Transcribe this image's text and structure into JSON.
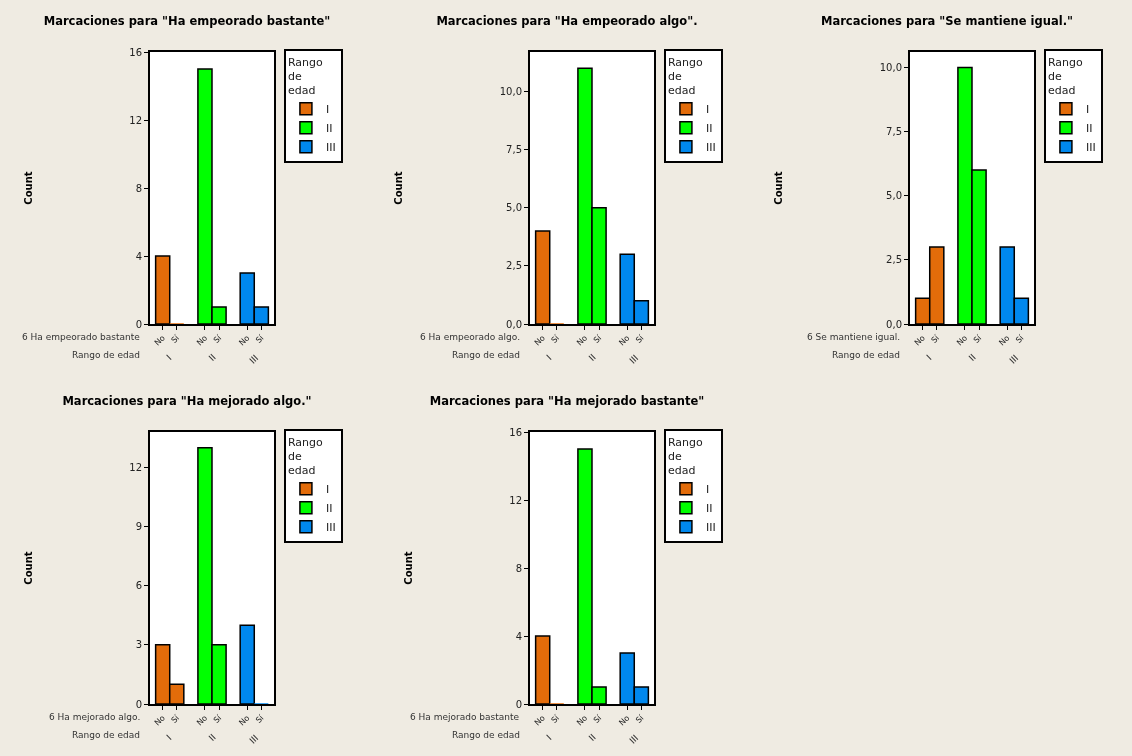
{
  "chart_data": [
    {
      "type": "bar",
      "title": "Marcaciones para \"Ha empeorado bastante\"",
      "ylabel": "Count",
      "legend_title": "Rango de edad",
      "legend": "top right",
      "grid": false,
      "categories": [
        "No",
        "Sí",
        "No",
        "Sí",
        "No",
        "Sí"
      ],
      "series": [
        {
          "name": "I",
          "color": "#e36c0a",
          "values": [
            4,
            0,
            null,
            null,
            null,
            null
          ]
        },
        {
          "name": "II",
          "color": "#00ff00",
          "values": [
            null,
            null,
            15,
            1,
            null,
            null
          ]
        },
        {
          "name": "III",
          "color": "#0088ee",
          "values": [
            null,
            null,
            null,
            null,
            3,
            1
          ]
        }
      ],
      "ylim": [
        0,
        16
      ],
      "yticks": [
        0,
        4,
        8,
        12,
        16
      ],
      "annotations": [
        "6 Ha empeorado bastante",
        "Rango de edad",
        "I",
        "II",
        "III"
      ]
    },
    {
      "type": "bar",
      "title": "Marcaciones para \"Ha empeorado algo\".",
      "ylabel": "Count",
      "legend_title": "Rango de edad",
      "legend": "top right",
      "grid": false,
      "categories": [
        "No",
        "Sí",
        "No",
        "Sí",
        "No",
        "Sí"
      ],
      "series": [
        {
          "name": "I",
          "color": "#e36c0a",
          "values": [
            4,
            0,
            null,
            null,
            null,
            null
          ]
        },
        {
          "name": "II",
          "color": "#00ff00",
          "values": [
            null,
            null,
            11,
            5,
            null,
            null
          ]
        },
        {
          "name": "III",
          "color": "#0088ee",
          "values": [
            null,
            null,
            null,
            null,
            3,
            1
          ]
        }
      ],
      "ylim": [
        0,
        11.7
      ],
      "yticks": [
        {
          "value": 0,
          "label": "0,0"
        },
        {
          "value": 2.5,
          "label": "2,5"
        },
        {
          "value": 5,
          "label": "5,0"
        },
        {
          "value": 7.5,
          "label": "7,5"
        },
        {
          "value": 10,
          "label": "10,0"
        }
      ],
      "annotations": [
        "6 Ha empeorado algo.",
        "Rango de edad",
        "I",
        "II",
        "III"
      ]
    },
    {
      "type": "bar",
      "title": "Marcaciones para \"Se mantiene igual.\"",
      "ylabel": "Count",
      "legend_title": "Rango de edad",
      "legend": "top right",
      "grid": false,
      "categories": [
        "No",
        "Sí",
        "No",
        "Sí",
        "No",
        "Sí"
      ],
      "series": [
        {
          "name": "I",
          "color": "#e36c0a",
          "values": [
            1,
            3,
            null,
            null,
            null,
            null
          ]
        },
        {
          "name": "II",
          "color": "#00ff00",
          "values": [
            null,
            null,
            10,
            6,
            null,
            null
          ]
        },
        {
          "name": "III",
          "color": "#0088ee",
          "values": [
            null,
            null,
            null,
            null,
            3,
            1
          ]
        }
      ],
      "ylim": [
        0,
        10.6
      ],
      "yticks": [
        {
          "value": 0,
          "label": "0,0"
        },
        {
          "value": 2.5,
          "label": "2,5"
        },
        {
          "value": 5,
          "label": "5,0"
        },
        {
          "value": 7.5,
          "label": "7,5"
        },
        {
          "value": 10,
          "label": "10,0"
        }
      ],
      "annotations": [
        "6 Se mantiene igual.",
        "Rango de edad",
        "I",
        "II",
        "III"
      ]
    },
    {
      "type": "bar",
      "title": "Marcaciones para \"Ha mejorado algo.\"",
      "ylabel": "Count",
      "legend_title": "Rango de edad",
      "legend": "top right",
      "grid": false,
      "categories": [
        "No",
        "Sí",
        "No",
        "Sí",
        "No",
        "Sí"
      ],
      "series": [
        {
          "name": "I",
          "color": "#e36c0a",
          "values": [
            3,
            1,
            null,
            null,
            null,
            null
          ]
        },
        {
          "name": "II",
          "color": "#00ff00",
          "values": [
            null,
            null,
            13,
            3,
            null,
            null
          ]
        },
        {
          "name": "III",
          "color": "#0088ee",
          "values": [
            null,
            null,
            null,
            null,
            4,
            0
          ]
        }
      ],
      "ylim": [
        0,
        13.8
      ],
      "yticks": [
        0,
        3,
        6,
        9,
        12
      ],
      "annotations": [
        "6 Ha mejorado algo.",
        "Rango de edad",
        "I",
        "II",
        "III"
      ]
    },
    {
      "type": "bar",
      "title": "Marcaciones para \"Ha mejorado bastante\"",
      "ylabel": "Count",
      "legend_title": "Rango de edad",
      "legend": "top right",
      "grid": false,
      "categories": [
        "No",
        "Sí",
        "No",
        "Sí",
        "No",
        "Sí"
      ],
      "series": [
        {
          "name": "I",
          "color": "#e36c0a",
          "values": [
            4,
            0,
            null,
            null,
            null,
            null
          ]
        },
        {
          "name": "II",
          "color": "#00ff00",
          "values": [
            null,
            null,
            15,
            1,
            null,
            null
          ]
        },
        {
          "name": "III",
          "color": "#0088ee",
          "values": [
            null,
            null,
            null,
            null,
            3,
            1
          ]
        }
      ],
      "ylim": [
        0,
        16
      ],
      "yticks": [
        0,
        4,
        8,
        12,
        16
      ],
      "annotations": [
        "6 Ha mejorado bastante",
        "Rango de edad",
        "I",
        "II",
        "III"
      ]
    }
  ]
}
